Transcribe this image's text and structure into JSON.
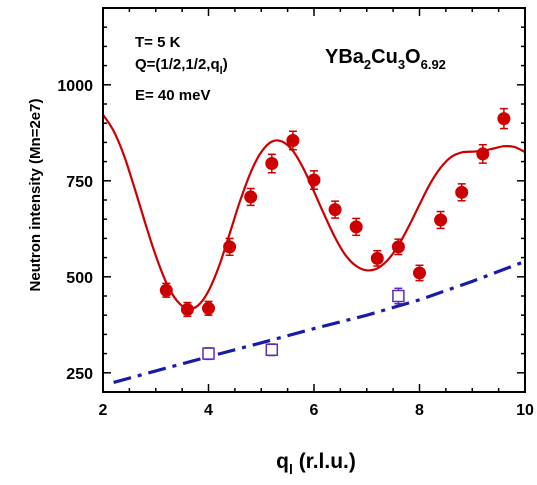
{
  "chart_data": {
    "type": "scatter",
    "xlabel_main": "q",
    "xlabel_sub": "l",
    "xlabel_rest": " (r.l.u.)",
    "ylabel": "Neutron intensity (Mn=2e7)",
    "xlim": [
      2,
      10
    ],
    "ylim": [
      200,
      1200
    ],
    "xticks": [
      2,
      4,
      6,
      8,
      10
    ],
    "yticks": [
      250,
      500,
      750,
      1000
    ],
    "annotations": {
      "temperature": "T= 5  K",
      "q_prefix": "Q=(1/2,1/2,q",
      "q_sub": "l",
      "q_suffix": ")",
      "energy": "E= 40 meV"
    },
    "formula": [
      {
        "text": "YBa",
        "sub": false
      },
      {
        "text": "2",
        "sub": true
      },
      {
        "text": "Cu",
        "sub": false
      },
      {
        "text": "3",
        "sub": true
      },
      {
        "text": "O",
        "sub": false
      },
      {
        "text": "6.92",
        "sub": true
      }
    ],
    "series": [
      {
        "marker": "filled-circle",
        "color": "#cc0000",
        "x": [
          3.2,
          3.6,
          4.0,
          4.4,
          4.8,
          5.2,
          5.6,
          6.0,
          6.4,
          6.8,
          7.2,
          7.6,
          8.0,
          8.4,
          8.8,
          9.2,
          9.6
        ],
        "y": [
          465,
          415,
          418,
          578,
          708,
          795,
          855,
          752,
          675,
          630,
          548,
          578,
          510,
          648,
          720,
          820,
          912
        ],
        "err": [
          18,
          18,
          18,
          22,
          22,
          24,
          24,
          24,
          22,
          22,
          20,
          20,
          20,
          22,
          22,
          24,
          26
        ]
      },
      {
        "marker": "open-square",
        "color": "#5b2db8",
        "x": [
          4.0,
          5.2,
          7.6
        ],
        "y": [
          300,
          310,
          450
        ],
        "err": [
          15,
          15,
          20
        ]
      }
    ],
    "fit_curve": {
      "style": "solid",
      "color": "#cc0000",
      "x": [
        2.0,
        2.2,
        2.4,
        2.6,
        2.8,
        3.0,
        3.2,
        3.4,
        3.6,
        3.8,
        4.0,
        4.2,
        4.4,
        4.6,
        4.8,
        5.0,
        5.2,
        5.4,
        5.6,
        5.8,
        6.0,
        6.2,
        6.4,
        6.6,
        6.8,
        7.0,
        7.2,
        7.4,
        7.6,
        7.8,
        8.0,
        8.2,
        8.4,
        8.6,
        8.8,
        9.0,
        9.2,
        9.4,
        9.6,
        9.8,
        10.0
      ],
      "y": [
        922,
        880,
        815,
        730,
        640,
        555,
        485,
        438,
        417,
        425,
        463,
        528,
        612,
        698,
        772,
        825,
        852,
        852,
        828,
        782,
        722,
        660,
        602,
        556,
        528,
        517,
        522,
        544,
        582,
        632,
        688,
        742,
        784,
        812,
        824,
        826,
        828,
        834,
        840,
        838,
        825
      ]
    },
    "background_line": {
      "style": "dash-dot",
      "color": "#1a1aa8",
      "x": [
        2.2,
        3.0,
        4.0,
        5.0,
        6.0,
        7.0,
        8.0,
        9.0,
        10.0
      ],
      "y": [
        225,
        255,
        292,
        328,
        365,
        400,
        440,
        488,
        540
      ]
    }
  }
}
